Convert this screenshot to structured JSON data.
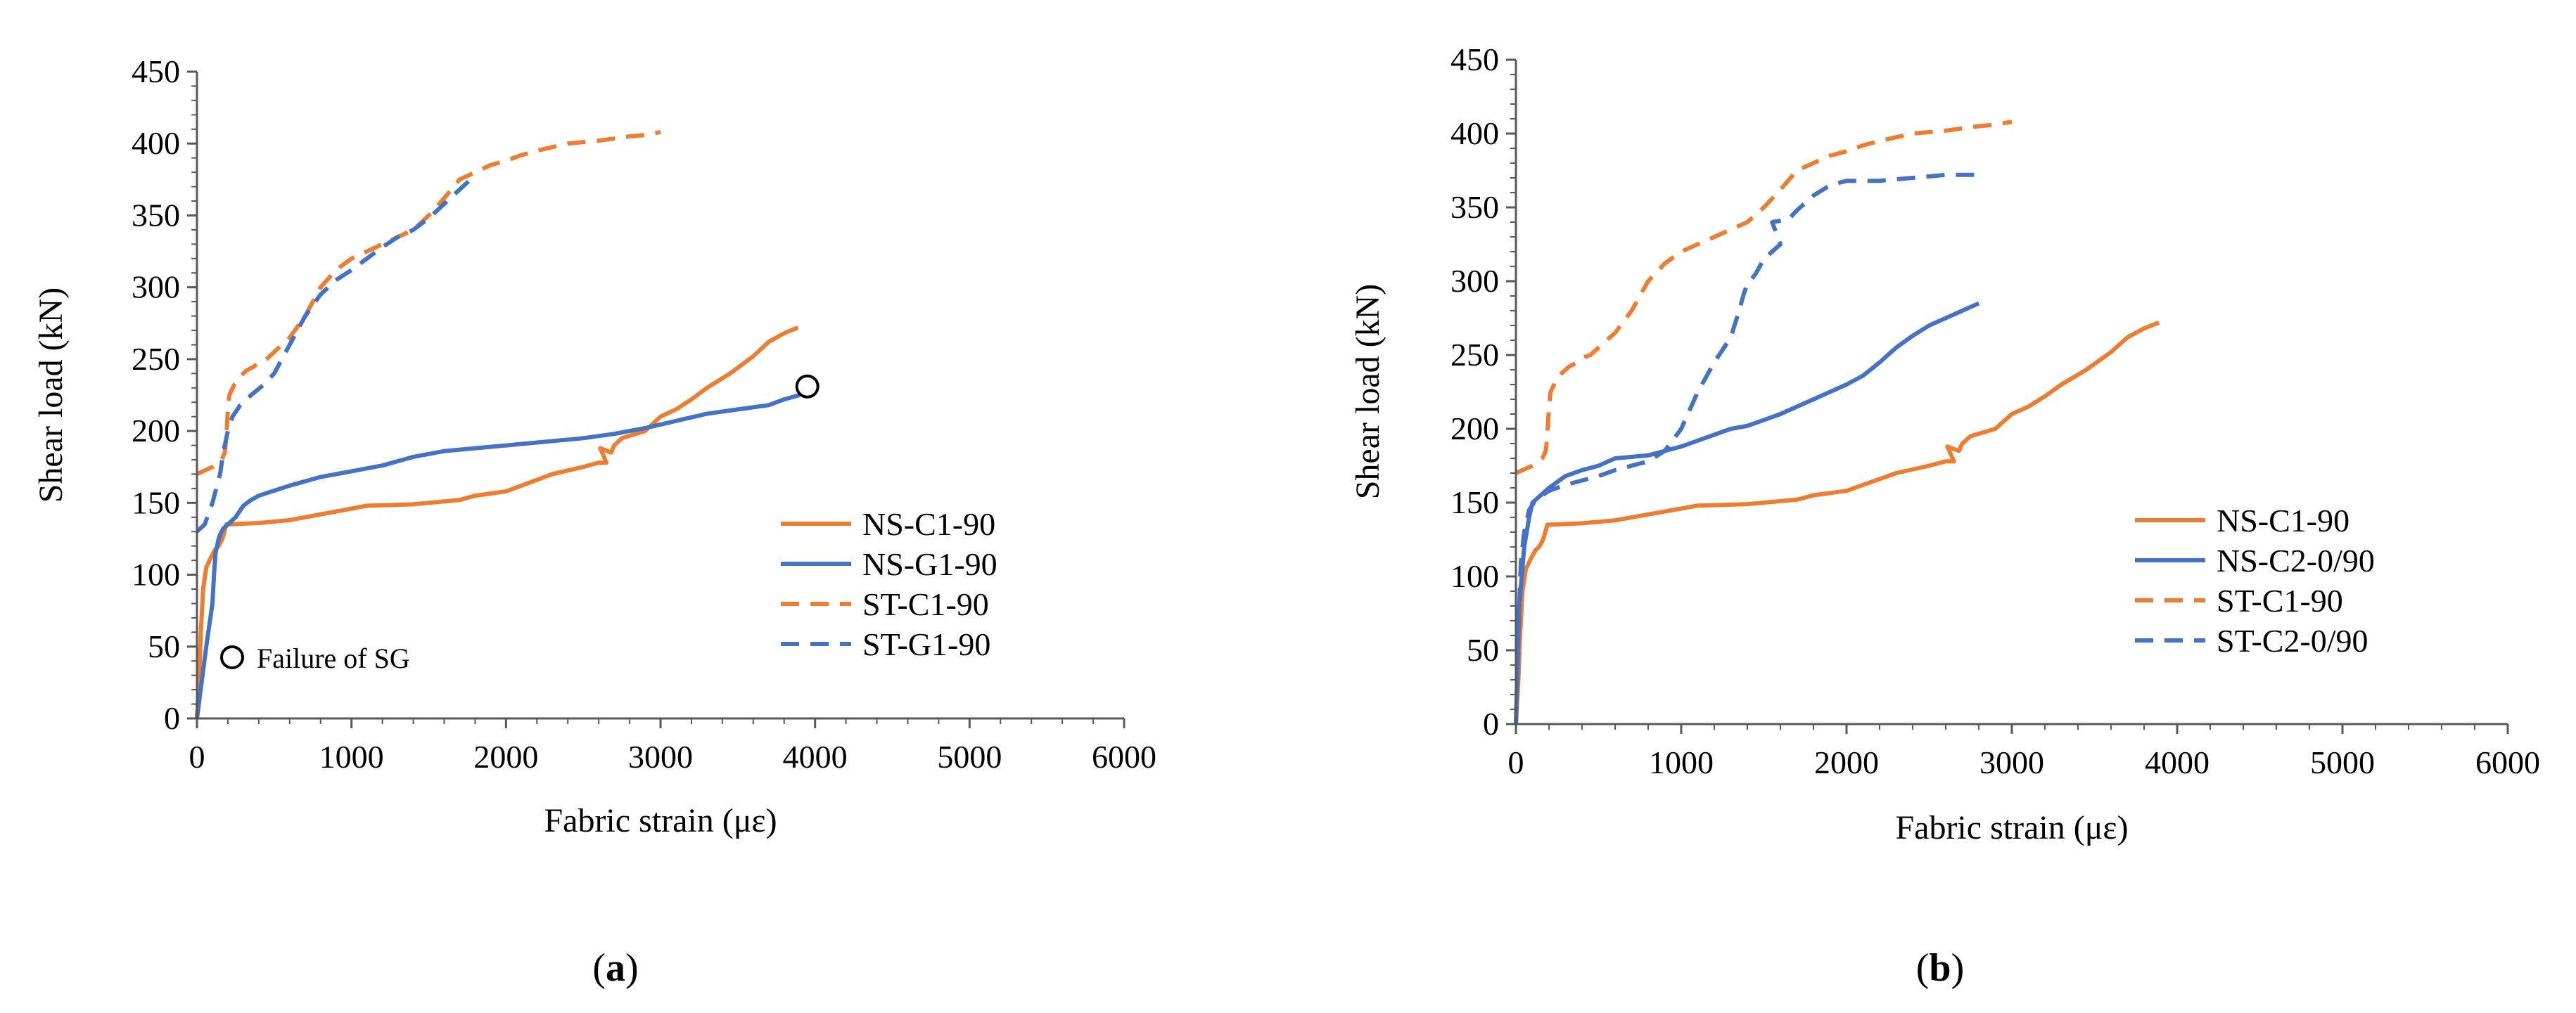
{
  "colors": {
    "orange": "#ED7D31",
    "blue": "#4472C4",
    "axis": "#595959",
    "text": "#000000"
  },
  "charts": [
    {
      "caption": "a",
      "annotation": "Failure of SG"
    },
    {
      "caption": "b"
    }
  ],
  "chart_data": [
    {
      "type": "line",
      "title": "",
      "xlabel": "Fabric strain (με)",
      "ylabel": "Shear load (kN)",
      "xlim": [
        0,
        6000
      ],
      "ylim": [
        0,
        450
      ],
      "xticks": [
        0,
        1000,
        2000,
        3000,
        4000,
        5000,
        6000
      ],
      "yticks": [
        0,
        50,
        100,
        150,
        200,
        250,
        300,
        350,
        400,
        450
      ],
      "grid": false,
      "legend_position": "right",
      "annotation": {
        "text": "Failure of SG",
        "marker": "circle"
      },
      "series": [
        {
          "name": "NS-C1-90",
          "color": "orange",
          "style": "solid",
          "x": [
            0,
            15,
            25,
            40,
            60,
            90,
            120,
            140,
            160,
            170,
            190,
            400,
            600,
            800,
            1000,
            1100,
            1400,
            1700,
            1800,
            2000,
            2100,
            2200,
            2300,
            2500,
            2600,
            2650,
            2610,
            2680,
            2700,
            2750,
            2900,
            3000,
            3100,
            3200,
            3300,
            3450,
            3600,
            3700,
            3800,
            3890
          ],
          "y": [
            0,
            30,
            60,
            90,
            105,
            112,
            118,
            120,
            124,
            127,
            135,
            136,
            138,
            142,
            146,
            148,
            149,
            152,
            155,
            158,
            162,
            166,
            170,
            175,
            178,
            178,
            188,
            185,
            190,
            195,
            200,
            210,
            215,
            222,
            230,
            240,
            252,
            262,
            268,
            272
          ]
        },
        {
          "name": "NS-G1-90",
          "color": "blue",
          "style": "solid",
          "x": [
            0,
            60,
            100,
            110,
            120,
            140,
            150,
            170,
            200,
            250,
            300,
            350,
            400,
            600,
            800,
            1000,
            1200,
            1400,
            1600,
            1800,
            2000,
            2200,
            2500,
            2700,
            2900,
            3100,
            3300,
            3500,
            3700,
            3800,
            3900
          ],
          "y": [
            0,
            50,
            80,
            100,
            115,
            125,
            128,
            132,
            135,
            140,
            148,
            152,
            155,
            162,
            168,
            172,
            176,
            182,
            186,
            188,
            190,
            192,
            195,
            198,
            202,
            207,
            212,
            215,
            218,
            222,
            225
          ]
        },
        {
          "name": "ST-C1-90",
          "color": "orange",
          "style": "dashed",
          "x": [
            0,
            40,
            100,
            160,
            180,
            190,
            195,
            200,
            210,
            240,
            280,
            320,
            370,
            400,
            450,
            500,
            600,
            700,
            800,
            900,
            1000,
            1100,
            1200,
            1300,
            1400,
            1500,
            1600,
            1700,
            1800,
            1900,
            2000,
            2100,
            2200,
            2400,
            2600,
            2800,
            2900,
            3000
          ],
          "y": [
            170,
            172,
            175,
            180,
            185,
            195,
            205,
            215,
            225,
            232,
            238,
            242,
            245,
            248,
            250,
            255,
            265,
            280,
            300,
            312,
            320,
            325,
            330,
            335,
            340,
            350,
            362,
            375,
            380,
            385,
            388,
            392,
            395,
            400,
            402,
            405,
            406,
            408
          ]
        },
        {
          "name": "ST-G1-90",
          "color": "blue",
          "style": "dashed",
          "x": [
            0,
            50,
            100,
            150,
            170,
            200,
            230,
            280,
            350,
            430,
            500,
            600,
            700,
            800,
            900,
            1000,
            1100,
            1200,
            1300,
            1400,
            1500,
            1600,
            1700,
            1800
          ],
          "y": [
            130,
            135,
            150,
            170,
            185,
            200,
            210,
            218,
            225,
            232,
            240,
            260,
            280,
            295,
            305,
            312,
            320,
            328,
            335,
            340,
            348,
            358,
            368,
            378
          ]
        }
      ]
    },
    {
      "type": "line",
      "title": "",
      "xlabel": "Fabric strain (με)",
      "ylabel": "Shear load (kN)",
      "xlim": [
        0,
        6000
      ],
      "ylim": [
        0,
        450
      ],
      "xticks": [
        0,
        1000,
        2000,
        3000,
        4000,
        5000,
        6000
      ],
      "yticks": [
        0,
        50,
        100,
        150,
        200,
        250,
        300,
        350,
        400,
        450
      ],
      "grid": false,
      "legend_position": "right",
      "series": [
        {
          "name": "NS-C1-90",
          "color": "orange",
          "style": "solid",
          "x": [
            0,
            15,
            25,
            40,
            60,
            90,
            120,
            140,
            160,
            170,
            190,
            400,
            600,
            800,
            1000,
            1100,
            1400,
            1700,
            1800,
            2000,
            2100,
            2200,
            2300,
            2500,
            2600,
            2650,
            2610,
            2680,
            2700,
            2750,
            2900,
            3000,
            3100,
            3200,
            3300,
            3450,
            3600,
            3700,
            3800,
            3890
          ],
          "y": [
            0,
            30,
            60,
            90,
            105,
            112,
            118,
            120,
            124,
            127,
            135,
            136,
            138,
            142,
            146,
            148,
            149,
            152,
            155,
            158,
            162,
            166,
            170,
            175,
            178,
            178,
            188,
            185,
            190,
            195,
            200,
            210,
            215,
            222,
            230,
            240,
            252,
            262,
            268,
            272
          ]
        },
        {
          "name": "NS-C2-0/90",
          "color": "blue",
          "style": "solid",
          "x": [
            0,
            20,
            50,
            80,
            100,
            150,
            200,
            300,
            400,
            500,
            600,
            800,
            900,
            1000,
            1100,
            1200,
            1300,
            1400,
            1500,
            1600,
            1700,
            1800,
            1900,
            2000,
            2100,
            2200,
            2300,
            2400,
            2500,
            2600,
            2700,
            2800
          ],
          "y": [
            0,
            80,
            120,
            140,
            150,
            155,
            160,
            168,
            172,
            175,
            180,
            182,
            185,
            188,
            192,
            196,
            200,
            202,
            206,
            210,
            215,
            220,
            225,
            230,
            236,
            245,
            255,
            263,
            270,
            275,
            280,
            285
          ]
        },
        {
          "name": "ST-C1-90",
          "color": "orange",
          "style": "dashed",
          "x": [
            0,
            40,
            100,
            160,
            180,
            190,
            195,
            200,
            210,
            240,
            280,
            320,
            370,
            400,
            450,
            500,
            600,
            700,
            800,
            900,
            1000,
            1100,
            1200,
            1300,
            1400,
            1500,
            1600,
            1700,
            1800,
            1900,
            2000,
            2100,
            2200,
            2400,
            2600,
            2800,
            2900,
            3000
          ],
          "y": [
            170,
            172,
            175,
            180,
            185,
            195,
            205,
            215,
            225,
            232,
            238,
            242,
            245,
            248,
            250,
            255,
            265,
            280,
            300,
            312,
            320,
            325,
            330,
            335,
            340,
            350,
            362,
            375,
            380,
            385,
            388,
            392,
            395,
            400,
            402,
            405,
            406,
            408
          ]
        },
        {
          "name": "ST-C2-0/90",
          "color": "blue",
          "style": "dashed",
          "x": [
            0,
            10,
            20,
            30,
            50,
            80,
            120,
            200,
            300,
            400,
            500,
            600,
            700,
            800,
            900,
            1000,
            1100,
            1200,
            1300,
            1350,
            1380,
            1400,
            1450,
            1500,
            1600,
            1550,
            1650,
            1700,
            1800,
            1900,
            2000,
            2200,
            2400,
            2600,
            2800
          ],
          "y": [
            0,
            40,
            80,
            110,
            130,
            145,
            152,
            158,
            162,
            165,
            168,
            172,
            175,
            178,
            185,
            200,
            225,
            245,
            262,
            280,
            292,
            298,
            305,
            315,
            325,
            340,
            342,
            348,
            358,
            365,
            368,
            368,
            370,
            372,
            372
          ]
        }
      ]
    }
  ]
}
